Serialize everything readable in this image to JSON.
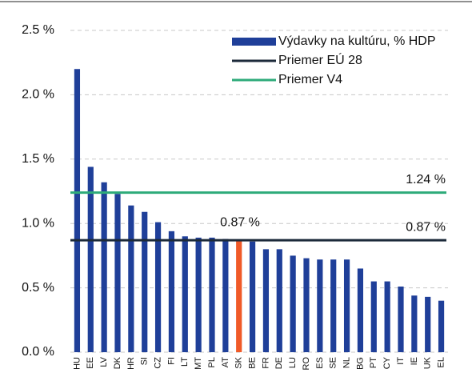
{
  "chart_data": {
    "type": "bar",
    "categories": [
      "HU",
      "EE",
      "LV",
      "DK",
      "HR",
      "SI",
      "CZ",
      "FI",
      "LT",
      "MT",
      "PL",
      "AT",
      "SK",
      "BE",
      "FR",
      "DE",
      "LU",
      "RO",
      "ES",
      "SE",
      "NL",
      "BG",
      "PT",
      "CY",
      "IT",
      "IE",
      "UK",
      "EL"
    ],
    "series": [
      {
        "name": "Výdavky na kultúru, % HDP",
        "color": "#1f3f99",
        "colors": [
          "#1f3f99",
          "#1f3f99",
          "#1f3f99",
          "#1f3f99",
          "#1f3f99",
          "#1f3f99",
          "#1f3f99",
          "#1f3f99",
          "#1f3f99",
          "#1f3f99",
          "#1f3f99",
          "#1f3f99",
          "#f05a28",
          "#1f3f99",
          "#1f3f99",
          "#1f3f99",
          "#1f3f99",
          "#1f3f99",
          "#1f3f99",
          "#1f3f99",
          "#1f3f99",
          "#1f3f99",
          "#1f3f99",
          "#1f3f99",
          "#1f3f99",
          "#1f3f99",
          "#1f3f99",
          "#1f3f99"
        ],
        "values": [
          2.2,
          1.44,
          1.32,
          1.23,
          1.14,
          1.09,
          1.01,
          0.94,
          0.9,
          0.89,
          0.89,
          0.88,
          0.87,
          0.86,
          0.8,
          0.8,
          0.75,
          0.73,
          0.72,
          0.72,
          0.72,
          0.65,
          0.55,
          0.55,
          0.51,
          0.44,
          0.43,
          0.4
        ]
      }
    ],
    "reference_lines": [
      {
        "name": "Priemer EÚ 28",
        "value": 0.87,
        "color": "#1c2a3a",
        "value_labels": [
          "0.87 %",
          "0.87 %"
        ]
      },
      {
        "name": "Priemer V4",
        "value": 1.24,
        "color": "#2eab7a",
        "value_labels": [
          "1.24 %"
        ]
      }
    ],
    "ylim": [
      0,
      2.5
    ],
    "yticks": [
      {
        "value": 0,
        "label": "0.0 %"
      },
      {
        "value": 0.5,
        "label": "0.5 %"
      },
      {
        "value": 1,
        "label": "1.0 %"
      },
      {
        "value": 1.5,
        "label": "1.5 %"
      },
      {
        "value": 2,
        "label": "2.0 %"
      },
      {
        "value": 2.5,
        "label": "2.5 %"
      }
    ],
    "grid": true,
    "legend": "top-right"
  }
}
